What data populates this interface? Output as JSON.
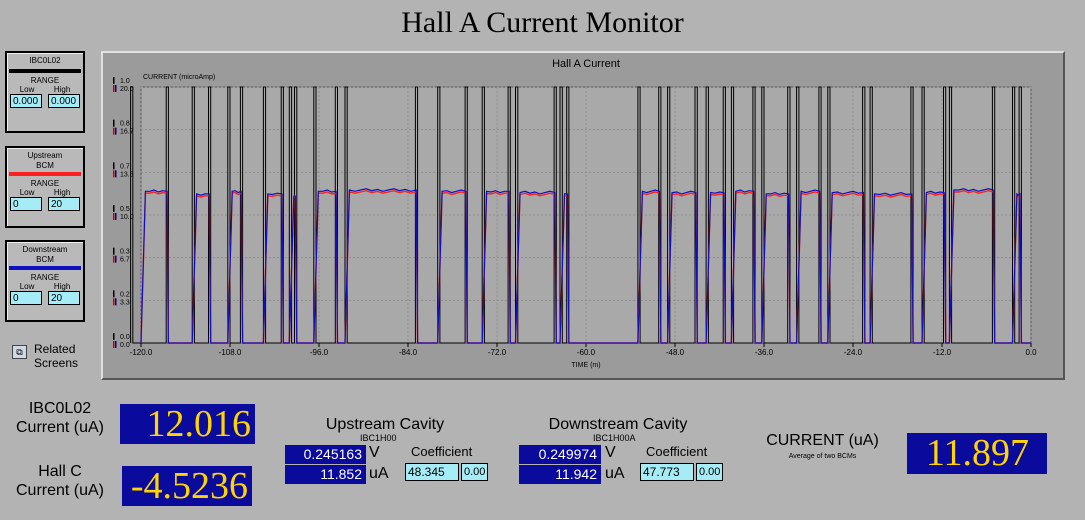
{
  "page": {
    "title": "Hall A Current Monitor"
  },
  "panels": [
    {
      "name": "IBC0L02",
      "color": "#000000",
      "range_label": "RANGE",
      "low_label": "Low",
      "high_label": "High",
      "low": "0.000",
      "high": "0.000"
    },
    {
      "name": "Upstream\nBCM",
      "color": "#ff2020",
      "range_label": "RANGE",
      "low_label": "Low",
      "high_label": "High",
      "low": "0",
      "high": "20"
    },
    {
      "name": "Downstream\nBCM",
      "color": "#1010c0",
      "range_label": "RANGE",
      "low_label": "Low",
      "high_label": "High",
      "low": "0",
      "high": "20"
    }
  ],
  "related": {
    "label": "Related\nScreens",
    "icon": "related-screens-icon"
  },
  "readouts": {
    "ibc_label": "IBC0L02\nCurrent (uA)",
    "ibc_value": "12.016",
    "hallc_label": "Hall C\nCurrent (uA)",
    "hallc_value": "-4.5236",
    "current_label": "CURRENT (uA)",
    "current_sub": "Average of two BCMs",
    "current_value": "11.897"
  },
  "upstream": {
    "title": "Upstream Cavity",
    "sub": "IBC1H00",
    "coef_label": "Coefficient",
    "volts": "0.245163",
    "volt_unit": "V",
    "ua": "11.852",
    "ua_unit": "uA",
    "coef": "48.345",
    "offset": "0.00"
  },
  "downstream": {
    "title": "Downstream Cavity",
    "sub": "IBC1H00A",
    "coef_label": "Coefficient",
    "volts": "0.249974",
    "volt_unit": "V",
    "ua": "11.942",
    "ua_unit": "uA",
    "coef": "47.773",
    "offset": "0.00"
  },
  "chart_data": {
    "type": "line",
    "title": "Hall A Current",
    "ylabel": "CURRENT (microAmp)",
    "xlabel": "TIME (m)",
    "xlim": [
      -120,
      0
    ],
    "x_ticks": [
      "-120.0",
      "-108.0",
      "-96.0",
      "-84.0",
      "-72.0",
      "-60.0",
      "-48.0",
      "-36.0",
      "-24.0",
      "-12.0",
      "0.0"
    ],
    "y_ticks_black": [
      "1.0",
      "0.8",
      "0.7",
      "0.5",
      "0.3",
      "0.2",
      "0.0"
    ],
    "y_ticks_red": [
      "20.0",
      "16.7",
      "13.3",
      "10.0",
      "6.7",
      "3.3",
      "0.0"
    ],
    "ylim_red": [
      0,
      20
    ],
    "ylim_black": [
      0,
      1
    ],
    "grid": true,
    "segments": [
      [
        -121.4,
        -116.3,
        11.8
      ],
      [
        -113.1,
        -110.6,
        11.6
      ],
      [
        -108.3,
        -106.3,
        11.8
      ],
      [
        -103.5,
        -100.8,
        11.6
      ],
      [
        -100.0,
        -99.0,
        11.4
      ],
      [
        -96.7,
        -93.5,
        11.8
      ],
      [
        -92.5,
        -82.7,
        11.9
      ],
      [
        -80.0,
        -76.0,
        11.8
      ],
      [
        -74.0,
        -70.2,
        11.8
      ],
      [
        -69.5,
        -64.0,
        11.7
      ],
      [
        -63.5,
        -62.3,
        11.6
      ],
      [
        -53.0,
        -49.9,
        11.8
      ],
      [
        -49.0,
        -45.0,
        11.7
      ],
      [
        -43.8,
        -41.2,
        11.7
      ],
      [
        -40.4,
        -37.2,
        11.8
      ],
      [
        -36.3,
        -32.5,
        11.6
      ],
      [
        -31.6,
        -28.3,
        11.8
      ],
      [
        -27.4,
        -22.4,
        11.7
      ],
      [
        -21.7,
        -15.9,
        11.6
      ],
      [
        -14.7,
        -11.5,
        11.7
      ],
      [
        -11.0,
        -4.9,
        11.9
      ],
      [
        -2.5,
        -1.3,
        11.6
      ]
    ],
    "series": [
      {
        "name": "Upstream BCM",
        "color": "#ff2020"
      },
      {
        "name": "Downstream BCM",
        "color": "#1010c0"
      },
      {
        "name": "IBC0L02",
        "color": "#000000"
      }
    ]
  }
}
